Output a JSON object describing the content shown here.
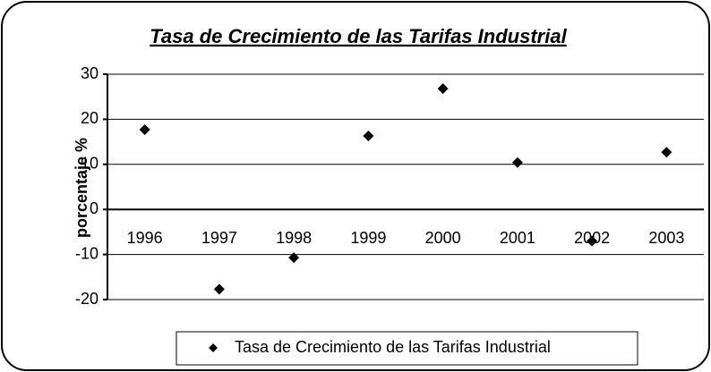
{
  "chart_data": {
    "type": "scatter",
    "title": "Tasa de Crecimiento de las Tarifas Industrial",
    "y_label": "porcentaje %",
    "categories": [
      "1996",
      "1997",
      "1998",
      "1999",
      "2000",
      "2001",
      "2002",
      "2003"
    ],
    "series": [
      {
        "name": "Tasa de Crecimiento de las Tarifas Industrial",
        "color": "#000000",
        "values": [
          17.7,
          -17.7,
          -10.7,
          16.3,
          26.8,
          10.4,
          -7.0,
          12.7
        ]
      }
    ],
    "ylim": [
      -20,
      30
    ],
    "yticks": [
      -20,
      -10,
      0,
      10,
      20,
      30
    ],
    "grid": true,
    "legend": "bottom"
  }
}
